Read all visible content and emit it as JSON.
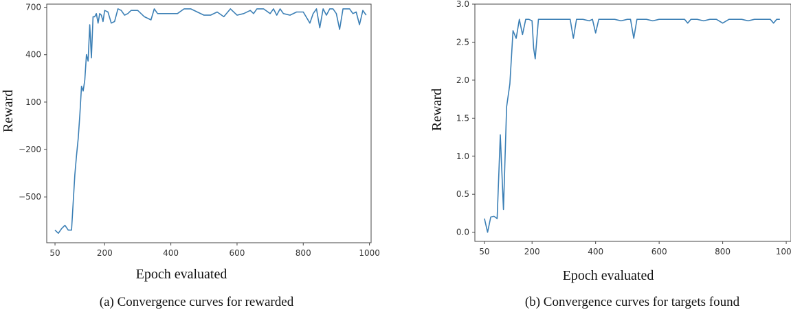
{
  "chart_data": [
    {
      "type": "line",
      "caption": "(a) Convergence curves for rewarded",
      "xlabel": "Epoch evaluated",
      "ylabel": "Reward",
      "xlim": [
        25,
        1005
      ],
      "ylim": [
        -790,
        720
      ],
      "xticks": [
        50,
        200,
        400,
        600,
        800,
        1000
      ],
      "xtick_labels": [
        "50",
        "200",
        "400",
        "600",
        "800",
        "1000"
      ],
      "yticks": [
        700,
        400,
        100,
        -200,
        -500
      ],
      "ytick_labels": [
        "700",
        "400",
        "100",
        "−200",
        "−500"
      ],
      "grid": false,
      "series": [
        {
          "color": "#3b7fb5",
          "x": [
            50,
            60,
            70,
            80,
            90,
            100,
            110,
            115,
            120,
            125,
            130,
            135,
            140,
            145,
            150,
            155,
            160,
            165,
            170,
            175,
            180,
            185,
            190,
            195,
            200,
            210,
            220,
            230,
            240,
            250,
            260,
            270,
            280,
            290,
            300,
            320,
            340,
            350,
            360,
            380,
            400,
            420,
            440,
            460,
            480,
            500,
            520,
            540,
            560,
            580,
            600,
            620,
            640,
            650,
            660,
            680,
            700,
            710,
            720,
            730,
            740,
            760,
            780,
            800,
            820,
            830,
            840,
            850,
            860,
            870,
            880,
            890,
            900,
            910,
            920,
            930,
            940,
            950,
            960,
            970,
            980,
            990
          ],
          "y": [
            -710,
            -730,
            -700,
            -680,
            -710,
            -710,
            -360,
            -240,
            -130,
            20,
            200,
            170,
            240,
            400,
            360,
            590,
            380,
            640,
            640,
            660,
            600,
            660,
            650,
            610,
            680,
            670,
            600,
            610,
            690,
            680,
            650,
            660,
            680,
            680,
            680,
            640,
            620,
            690,
            660,
            660,
            660,
            660,
            690,
            690,
            670,
            650,
            650,
            670,
            640,
            690,
            650,
            660,
            680,
            660,
            690,
            690,
            660,
            690,
            650,
            690,
            660,
            650,
            670,
            670,
            600,
            660,
            690,
            570,
            690,
            650,
            690,
            690,
            660,
            560,
            690,
            690,
            690,
            660,
            670,
            590,
            680,
            650
          ]
        }
      ]
    },
    {
      "type": "line",
      "caption": "(b) Convergence curves for targets found",
      "xlabel": "Epoch evaluated",
      "ylabel": "Reward",
      "xlim": [
        20,
        1015
      ],
      "ylim": [
        -0.12,
        3.0
      ],
      "xticks": [
        50,
        200,
        400,
        600,
        800,
        1000
      ],
      "xtick_labels": [
        "50",
        "200",
        "400",
        "600",
        "800",
        "1000"
      ],
      "yticks": [
        3.0,
        2.5,
        2.0,
        1.5,
        1.0,
        0.5,
        0.0
      ],
      "ytick_labels": [
        "3.0",
        "2.5",
        "2.0",
        "1.5",
        "1.0",
        "0.5",
        "0.0"
      ],
      "grid": false,
      "series": [
        {
          "color": "#3b7fb5",
          "x": [
            50,
            60,
            70,
            80,
            90,
            100,
            110,
            120,
            130,
            140,
            150,
            160,
            170,
            180,
            190,
            200,
            205,
            210,
            220,
            240,
            260,
            280,
            300,
            310,
            320,
            330,
            340,
            360,
            380,
            390,
            400,
            410,
            420,
            440,
            460,
            480,
            500,
            510,
            520,
            530,
            540,
            560,
            580,
            600,
            620,
            640,
            660,
            680,
            690,
            700,
            720,
            740,
            760,
            780,
            800,
            820,
            840,
            860,
            880,
            900,
            920,
            940,
            950,
            960,
            970,
            980
          ],
          "y": [
            0.18,
            0.0,
            0.2,
            0.21,
            0.18,
            1.28,
            0.3,
            1.65,
            1.95,
            2.65,
            2.55,
            2.8,
            2.6,
            2.8,
            2.8,
            2.78,
            2.42,
            2.28,
            2.8,
            2.8,
            2.8,
            2.8,
            2.8,
            2.8,
            2.8,
            2.55,
            2.8,
            2.8,
            2.78,
            2.8,
            2.62,
            2.8,
            2.8,
            2.8,
            2.8,
            2.78,
            2.8,
            2.8,
            2.55,
            2.8,
            2.8,
            2.8,
            2.78,
            2.8,
            2.8,
            2.8,
            2.8,
            2.8,
            2.75,
            2.8,
            2.8,
            2.78,
            2.8,
            2.8,
            2.75,
            2.8,
            2.8,
            2.8,
            2.78,
            2.8,
            2.8,
            2.8,
            2.8,
            2.75,
            2.8,
            2.8
          ]
        }
      ]
    }
  ]
}
